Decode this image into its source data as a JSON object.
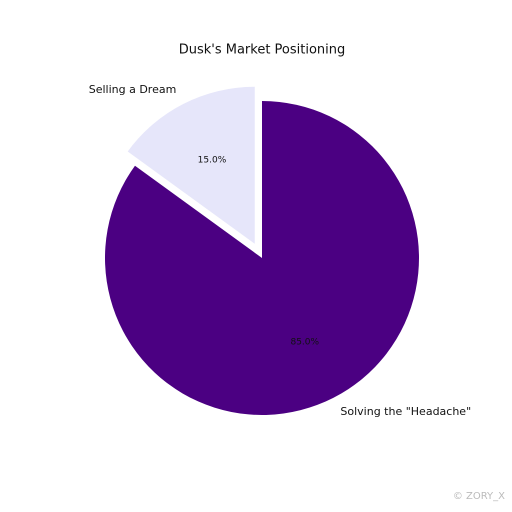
{
  "chart_data": {
    "type": "pie",
    "title": "Dusk's Market Positioning",
    "categories": [
      "Selling a Dream",
      "Solving the \"Headache\""
    ],
    "values": [
      15,
      85
    ],
    "value_labels": [
      "15.0%",
      "85.0%"
    ],
    "colors": [
      "#e6e6fa",
      "#4b0082"
    ]
  },
  "watermark": "© ZORY_X"
}
